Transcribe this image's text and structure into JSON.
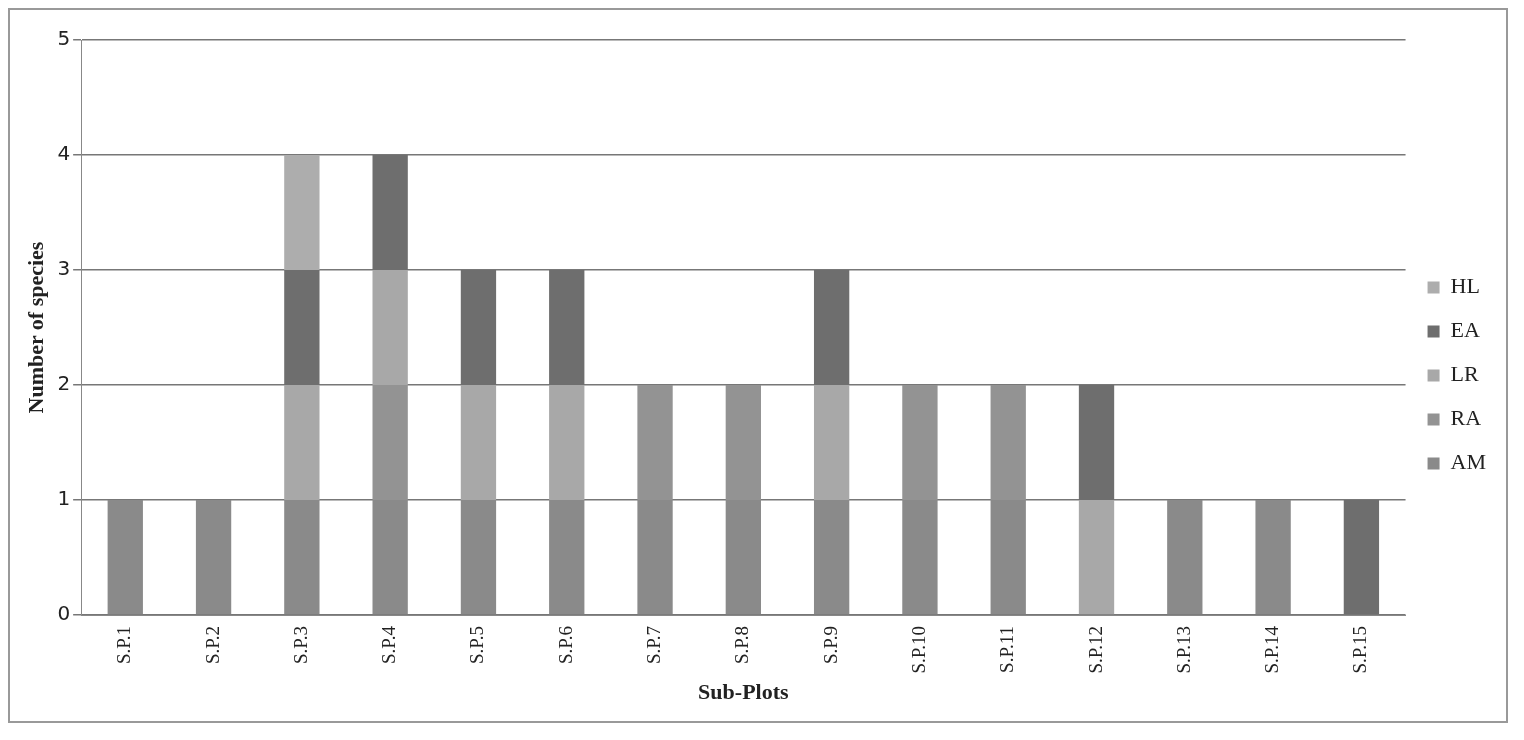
{
  "chart_data": {
    "type": "bar",
    "stacked": true,
    "xlabel": "Sub-Plots",
    "ylabel": "Number of species",
    "categories": [
      "S.P.1",
      "S.P.2",
      "S.P.3",
      "S.P.4",
      "S.P.5",
      "S.P.6",
      "S.P.7",
      "S.P.8",
      "S.P.9",
      "S.P.10",
      "S.P.11",
      "S.P.12",
      "S.P.13",
      "S.P.14",
      "S.P.15"
    ],
    "series": [
      {
        "name": "AM",
        "color": "#8a8a8a",
        "values": [
          1,
          1,
          1,
          1,
          1,
          1,
          1,
          1,
          1,
          1,
          1,
          0,
          1,
          1,
          0
        ]
      },
      {
        "name": "RA",
        "color": "#939393",
        "values": [
          0,
          0,
          0,
          1,
          0,
          0,
          1,
          1,
          0,
          1,
          1,
          0,
          0,
          0,
          0
        ]
      },
      {
        "name": "LR",
        "color": "#a8a8a8",
        "values": [
          0,
          0,
          1,
          1,
          1,
          1,
          0,
          0,
          1,
          0,
          0,
          1,
          0,
          0,
          0
        ]
      },
      {
        "name": "EA",
        "color": "#6e6e6e",
        "values": [
          0,
          0,
          1,
          1,
          1,
          1,
          0,
          0,
          1,
          0,
          0,
          1,
          0,
          0,
          1
        ]
      },
      {
        "name": "HL",
        "color": "#adadad",
        "values": [
          0,
          0,
          1,
          0,
          0,
          0,
          0,
          0,
          0,
          0,
          0,
          0,
          0,
          0,
          0
        ]
      }
    ],
    "ylim": [
      0,
      5
    ],
    "yticks": [
      0,
      1,
      2,
      3,
      4,
      5
    ],
    "grid": "y",
    "legend": "right"
  }
}
